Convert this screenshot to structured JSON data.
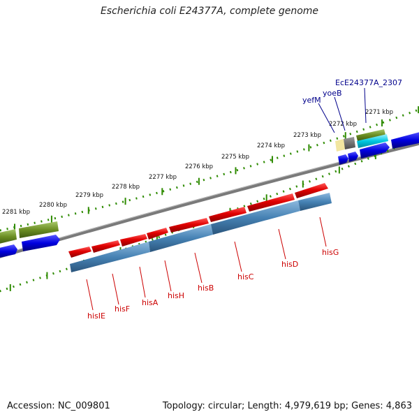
{
  "title": "Escherichia coli E24377A, complete genome",
  "footer": {
    "accession": "Accession: NC_009801",
    "summary": "Topology: circular; Length: 4,979,619 bp; Genes: 4,863"
  },
  "kbp_labels": [
    "2281 kbp",
    "2280 kbp",
    "2279 kbp",
    "2278 kbp",
    "2277 kbp",
    "2276 kbp",
    "2275 kbp",
    "2274 kbp",
    "2273 kbp",
    "2272 kbp",
    "2271 kbp"
  ],
  "genes_top": [
    "yefM",
    "yoeB",
    "EcE24377A_2307"
  ],
  "genes_bottom": [
    "hisIE",
    "hisF",
    "hisA",
    "hisH",
    "hisB",
    "hisC",
    "hisD",
    "hisG"
  ],
  "colors": {
    "cds_red": "#e00000",
    "gene_blue": "#4682b4",
    "forward_blue": "#0000e0",
    "olive": "#6b8e23",
    "backbone": "#808080",
    "tick_green": "#2e8b00",
    "label_red": "#cc0000",
    "label_blue": "#00008b"
  }
}
